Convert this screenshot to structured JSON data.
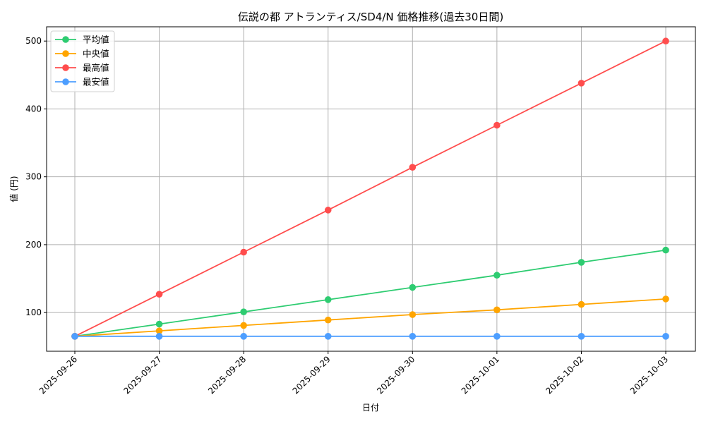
{
  "chart_data": {
    "type": "line",
    "title": "伝説の都 アトランティス/SD4/N 価格推移(過去30日間)",
    "xlabel": "日付",
    "ylabel": "値 (円)",
    "categories": [
      "2025-09-26",
      "2025-09-27",
      "2025-09-28",
      "2025-09-29",
      "2025-09-30",
      "2025-10-01",
      "2025-10-02",
      "2025-10-03"
    ],
    "series": [
      {
        "name": "平均値",
        "color": "#2ecc71",
        "values": [
          65,
          83,
          101,
          119,
          137,
          155,
          174,
          192
        ]
      },
      {
        "name": "中央値",
        "color": "#ffa500",
        "values": [
          65,
          73,
          81,
          89,
          97,
          104,
          112,
          120
        ]
      },
      {
        "name": "最高値",
        "color": "#ff4d4d",
        "values": [
          65,
          127,
          189,
          251,
          314,
          376,
          438,
          500
        ]
      },
      {
        "name": "最安値",
        "color": "#4d9eff",
        "values": [
          65,
          65,
          65,
          65,
          65,
          65,
          65,
          65
        ]
      }
    ],
    "yticks": [
      100,
      200,
      300,
      400,
      500
    ],
    "ylim": [
      43,
      521
    ],
    "grid": true,
    "legend_position": "upper left",
    "markers": "circle"
  }
}
